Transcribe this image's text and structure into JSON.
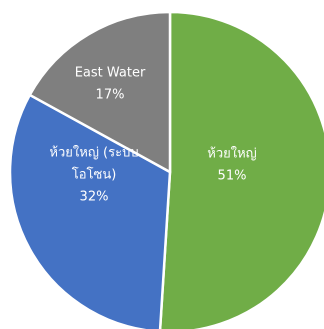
{
  "chart_data": {
    "type": "pie",
    "title": "",
    "slices": [
      {
        "label_lines": [
          "ห้วยใหญ่"
        ],
        "pct_text": "51%",
        "value": 51,
        "color": "#70ad47"
      },
      {
        "label_lines": [
          "ห้วยใหญ่ (ระบบ",
          "โอโซน)"
        ],
        "pct_text": "32%",
        "value": 32,
        "color": "#4472c4"
      },
      {
        "label_lines": [
          "East Water"
        ],
        "pct_text": "17%",
        "value": 17,
        "color": "#7f7f7f"
      }
    ]
  }
}
